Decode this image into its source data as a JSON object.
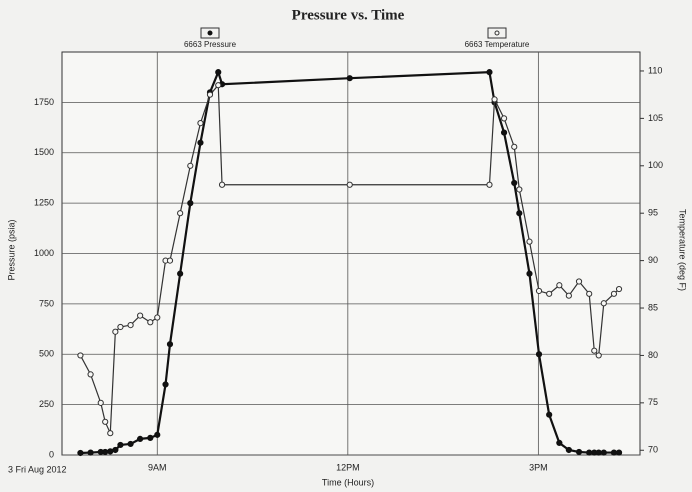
{
  "chart_data": {
    "type": "line",
    "title": "Pressure vs. Time",
    "x_label": "Time (Hours)",
    "y_label": "Pressure (psia)",
    "y2_label": "Temperature (deg F)",
    "date_label": "3 Fri Aug 2012",
    "x": [
      7.79,
      7.95,
      8.11,
      8.18,
      8.26,
      8.34,
      8.42,
      8.58,
      8.73,
      8.89,
      9.0,
      9.13,
      9.2,
      9.36,
      9.52,
      9.68,
      9.83,
      9.96,
      10.02,
      12.03,
      14.23,
      14.31,
      14.46,
      14.62,
      14.7,
      14.86,
      15.01,
      15.17,
      15.33,
      15.48,
      15.64,
      15.8,
      15.88,
      15.95,
      16.03,
      16.19,
      16.27
    ],
    "series": [
      {
        "name": "6663 Pressure",
        "color": "#111111",
        "marker": "filled",
        "values": [
          10,
          12,
          15,
          15,
          18,
          25,
          50,
          55,
          80,
          85,
          100,
          350,
          550,
          900,
          1250,
          1550,
          1800,
          1900,
          1840,
          1870,
          1900,
          1750,
          1600,
          1350,
          1200,
          900,
          500,
          200,
          60,
          25,
          15,
          12,
          12,
          12,
          12,
          12,
          12
        ]
      },
      {
        "name": "6663 Temperature",
        "color": "#333333",
        "marker": "open",
        "axis": "y2",
        "values": [
          80,
          78,
          75,
          73,
          71.8,
          82.5,
          83,
          83.2,
          84.2,
          83.5,
          84,
          90,
          90,
          95,
          100,
          104.5,
          107.5,
          108.5,
          98,
          98,
          98,
          107,
          105,
          102,
          97.5,
          92,
          86.8,
          86.5,
          87.4,
          86.3,
          87.8,
          86.5,
          80.5,
          80,
          85.5,
          86.5,
          87
        ]
      }
    ],
    "xlim": [
      7.5,
      16.6
    ],
    "xticks": [
      {
        "value": 9,
        "label": "9AM"
      },
      {
        "value": 12,
        "label": "12PM"
      },
      {
        "value": 15,
        "label": "3PM"
      }
    ],
    "ylim": [
      0,
      2000
    ],
    "yticks": [
      0,
      250,
      500,
      750,
      1000,
      1250,
      1500,
      1750
    ],
    "y2lim": [
      69.5,
      112
    ],
    "y2ticks": [
      70,
      75,
      80,
      85,
      90,
      95,
      100,
      105,
      110
    ],
    "grid": true
  }
}
